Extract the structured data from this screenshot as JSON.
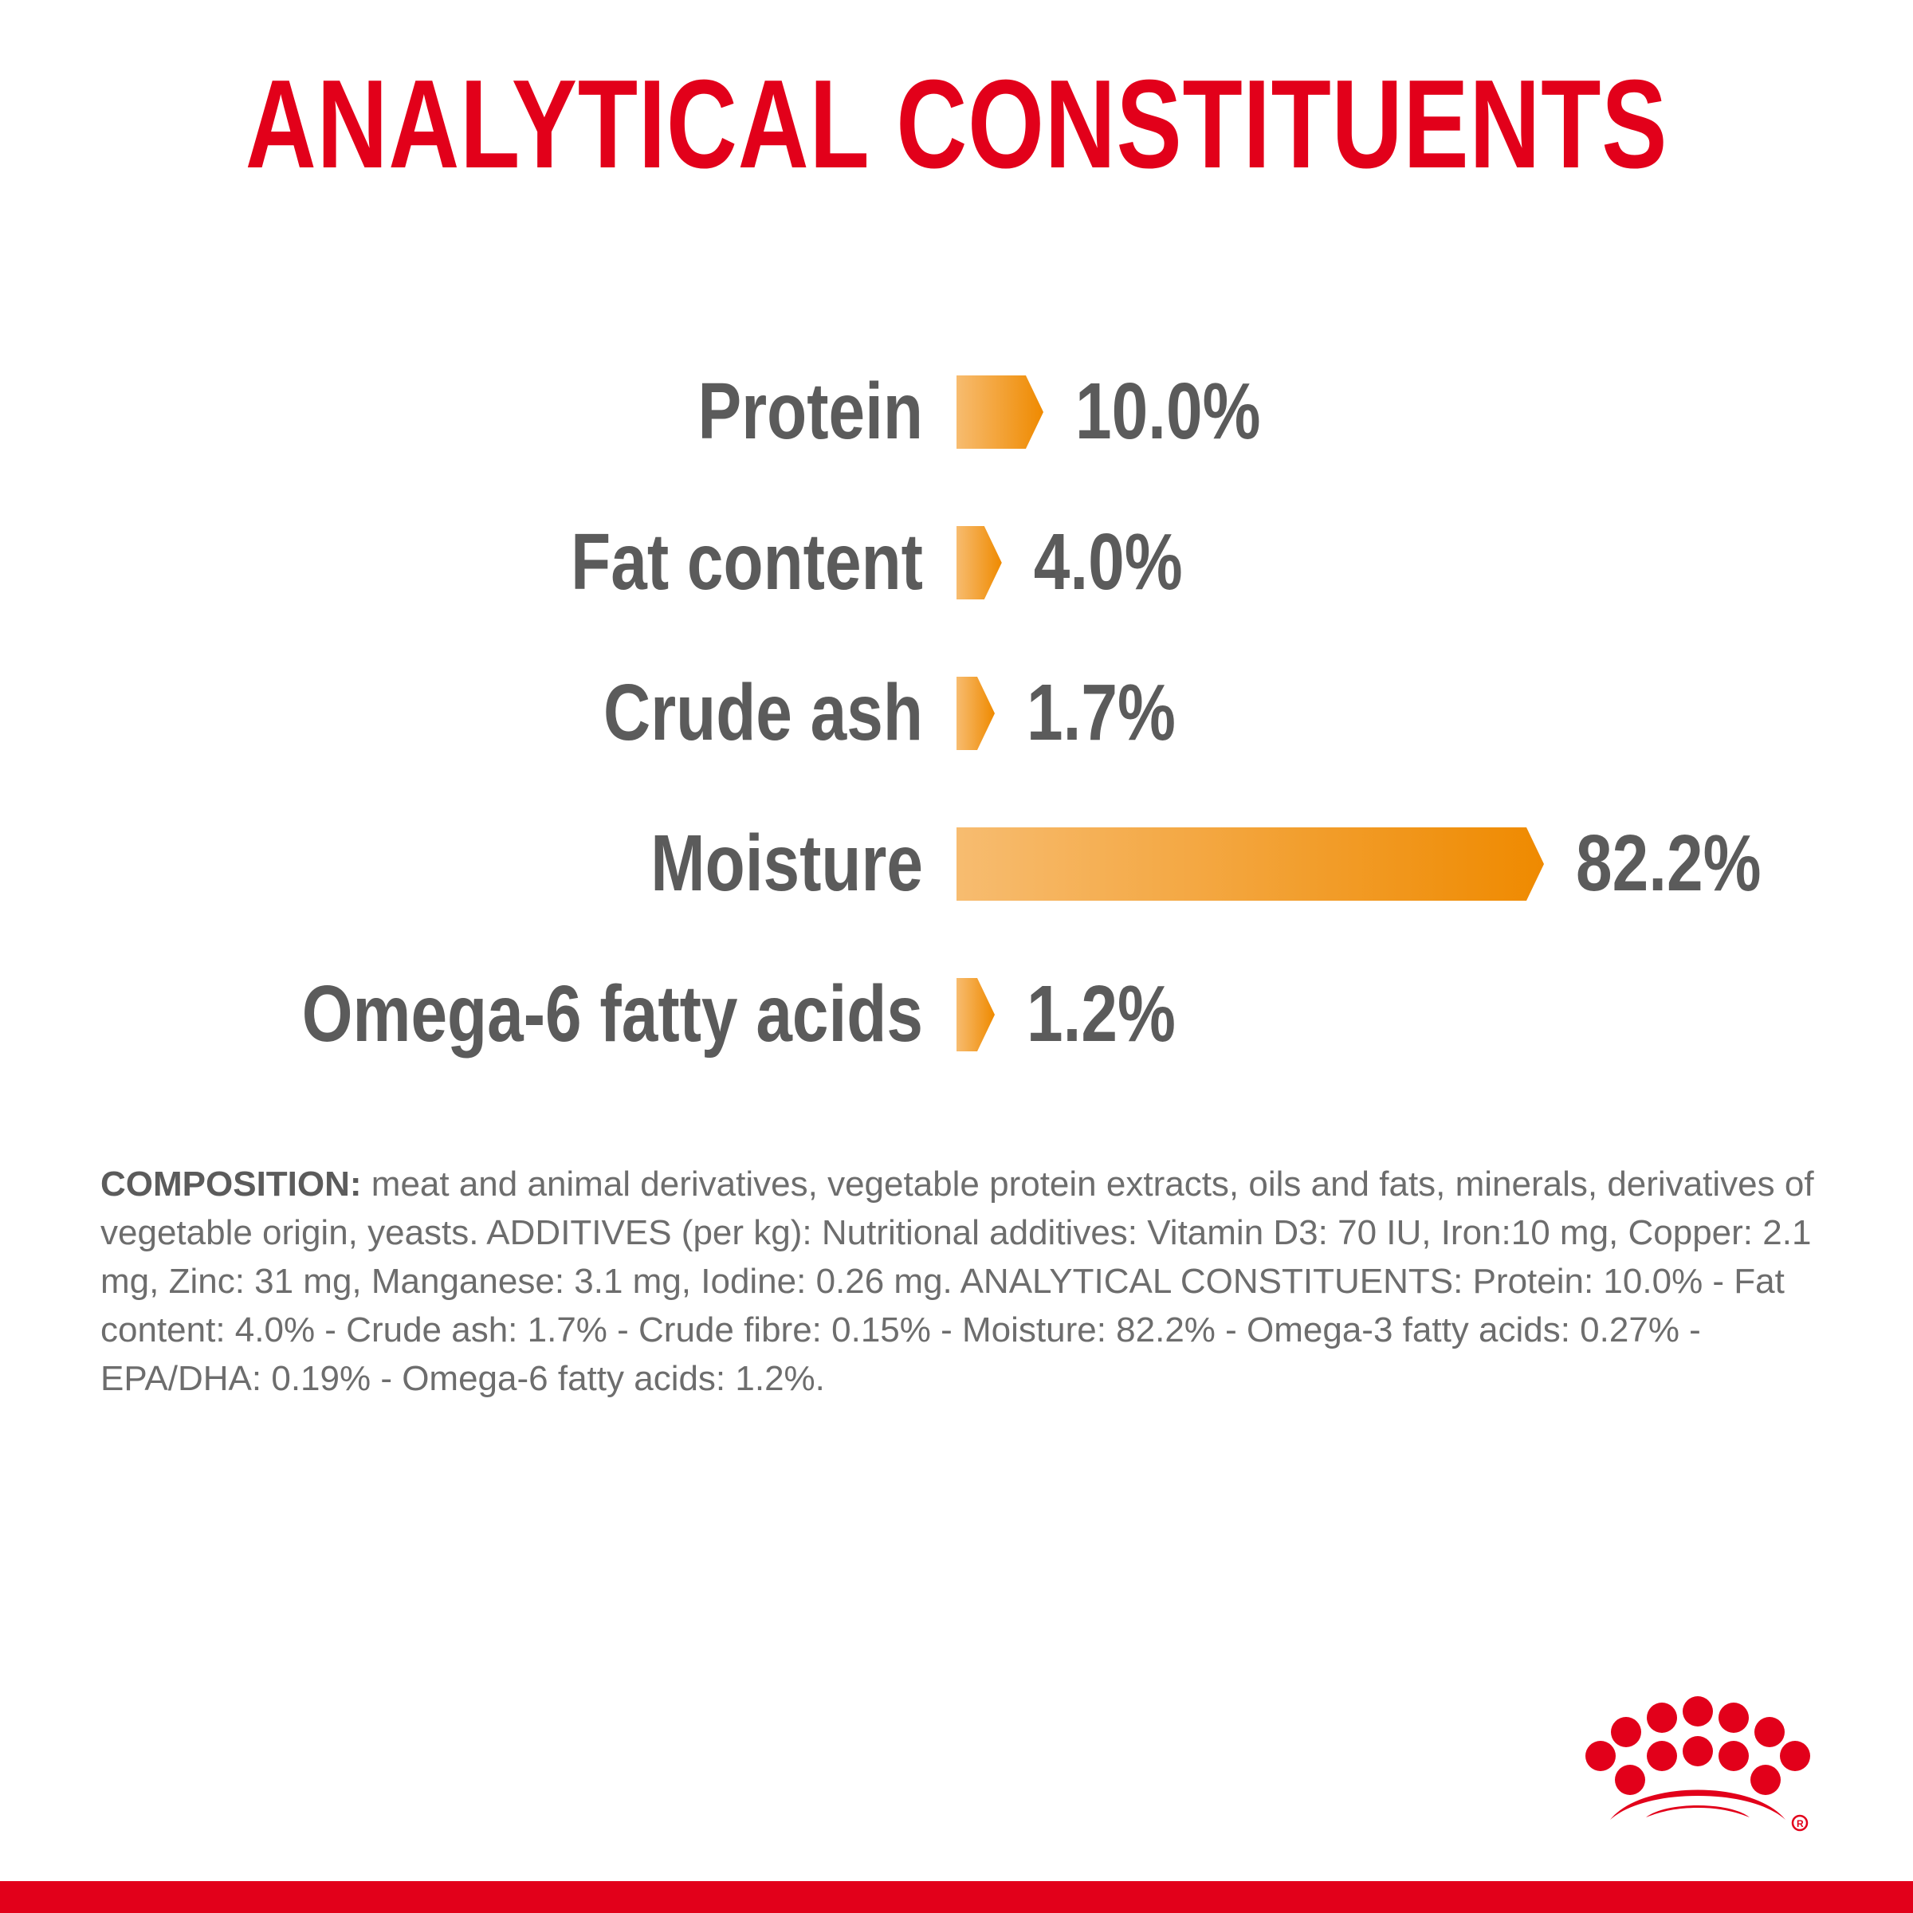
{
  "title": "ANALYTICAL CONSTITUENTS",
  "colors": {
    "brand_red": "#e2001a",
    "bar_light": "#f7bc70",
    "bar_dark": "#ef8a00",
    "text_gray": "#5b5b5b"
  },
  "chart_data": {
    "type": "bar",
    "orientation": "horizontal",
    "title": "ANALYTICAL CONSTITUENTS",
    "categories": [
      "Protein",
      "Fat content",
      "Crude ash",
      "Moisture",
      "Omega-6 fatty acids"
    ],
    "values": [
      10.0,
      4.0,
      1.7,
      82.2,
      1.2
    ],
    "value_labels": [
      "10.0%",
      "4.0%",
      "1.7%",
      "82.2%",
      "1.2%"
    ],
    "unit": "%",
    "xlim": [
      0,
      82.2
    ],
    "grid": false,
    "legend": "none"
  },
  "composition": {
    "label": "COMPOSITION:",
    "text": " meat and animal derivatives, vegetable protein extracts, oils and fats, minerals, derivatives of vegetable origin, yeasts. ADDITIVES (per kg): Nutritional additives: Vitamin D3: 70 IU, Iron:10 mg, Copper: 2.1 mg, Zinc: 31 mg, Manganese: 3.1 mg, Iodine: 0.26 mg. ANALYTICAL CONSTITUENTS: Protein: 10.0% - Fat content: 4.0% - Crude ash: 1.7% - Crude fibre: 0.15% - Moisture: 82.2% - Omega-3 fatty acids: 0.27% - EPA/DHA: 0.19% - Omega-6 fatty acids: 1.2%."
  },
  "logo": {
    "icon": "royal-canin-crown-logo"
  }
}
